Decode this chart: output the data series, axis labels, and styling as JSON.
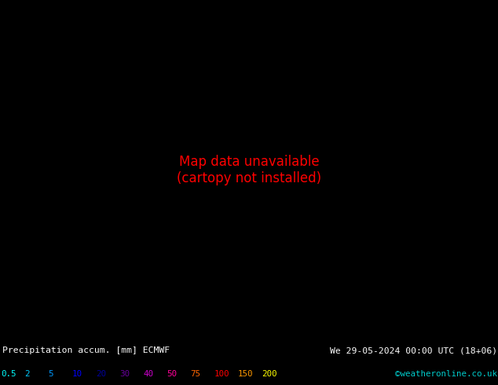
{
  "title_left": "Precipitation accum. [mm] ECMWF",
  "title_right": "We 29-05-2024 00:00 UTC (18+06)",
  "credit": "©weatheronline.co.uk",
  "colorbar_labels": [
    "0.5",
    "2",
    "5",
    "10",
    "20",
    "30",
    "40",
    "50",
    "75",
    "100",
    "150",
    "200"
  ],
  "label_colors": [
    "#00ffff",
    "#00ccff",
    "#0099ff",
    "#0000ff",
    "#000099",
    "#660099",
    "#cc00cc",
    "#ff0099",
    "#ff6600",
    "#ff0000",
    "#ff9900",
    "#ffff00"
  ],
  "land_color": "#aaddaa",
  "sea_color": "#cceeff",
  "precip_color": "#99ddff",
  "border_color": "#777777",
  "coast_color": "#555555",
  "bottom_bg": "#000000",
  "text_white": "#ffffff",
  "credit_color": "#00cccc",
  "fig_width": 6.34,
  "fig_height": 4.9,
  "dpi": 100,
  "extent": [
    10,
    120,
    35,
    75
  ]
}
